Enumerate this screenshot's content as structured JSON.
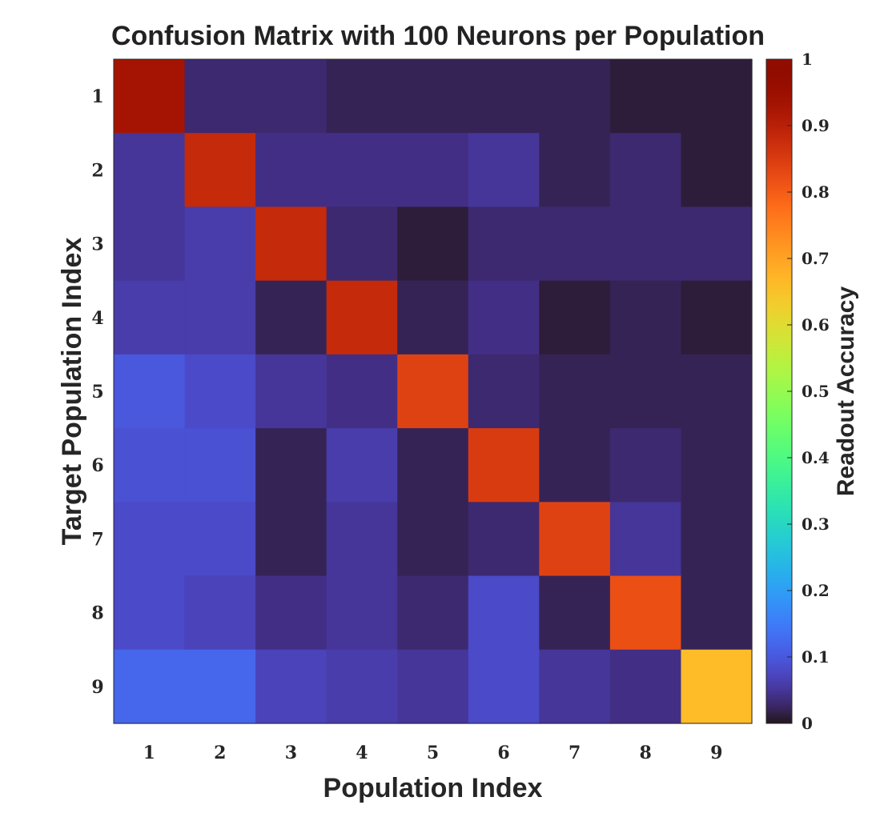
{
  "chart_data": {
    "type": "heatmap",
    "title": "Confusion Matrix with 100 Neurons per Population",
    "xlabel": "Population Index",
    "ylabel": "Target Population Index",
    "colorbar_label": "Readout Accuracy",
    "x_categories": [
      "1",
      "2",
      "3",
      "4",
      "5",
      "6",
      "7",
      "8",
      "9"
    ],
    "y_categories": [
      "1",
      "2",
      "3",
      "4",
      "5",
      "6",
      "7",
      "8",
      "9"
    ],
    "colorbar_ticks": [
      "0",
      "0.1",
      "0.2",
      "0.3",
      "0.4",
      "0.5",
      "0.6",
      "0.7",
      "0.8",
      "0.9",
      "1"
    ],
    "colorbar_range": [
      0,
      1
    ],
    "colormap": "turbo",
    "values": [
      [
        0.93,
        0.03,
        0.03,
        0.02,
        0.02,
        0.02,
        0.02,
        0.01,
        0.01
      ],
      [
        0.05,
        0.88,
        0.04,
        0.04,
        0.04,
        0.05,
        0.02,
        0.03,
        0.01
      ],
      [
        0.05,
        0.06,
        0.88,
        0.03,
        0.01,
        0.03,
        0.03,
        0.03,
        0.03
      ],
      [
        0.06,
        0.06,
        0.02,
        0.88,
        0.02,
        0.04,
        0.01,
        0.02,
        0.01
      ],
      [
        0.1,
        0.08,
        0.05,
        0.04,
        0.84,
        0.03,
        0.02,
        0.02,
        0.02
      ],
      [
        0.09,
        0.09,
        0.02,
        0.06,
        0.02,
        0.85,
        0.02,
        0.03,
        0.02
      ],
      [
        0.08,
        0.08,
        0.02,
        0.05,
        0.02,
        0.03,
        0.84,
        0.05,
        0.02
      ],
      [
        0.08,
        0.07,
        0.04,
        0.05,
        0.03,
        0.08,
        0.02,
        0.82,
        0.02
      ],
      [
        0.12,
        0.12,
        0.07,
        0.06,
        0.05,
        0.08,
        0.05,
        0.04,
        0.66
      ]
    ]
  }
}
